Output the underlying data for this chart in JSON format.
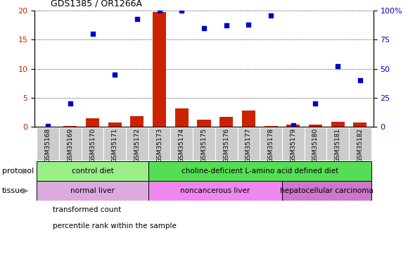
{
  "title": "GDS1385 / OR1266A",
  "samples": [
    "GSM35168",
    "GSM35169",
    "GSM35170",
    "GSM35171",
    "GSM35172",
    "GSM35173",
    "GSM35174",
    "GSM35175",
    "GSM35176",
    "GSM35177",
    "GSM35178",
    "GSM35179",
    "GSM35180",
    "GSM35181",
    "GSM35182"
  ],
  "transformed_count": [
    0.05,
    0.1,
    1.4,
    0.7,
    1.8,
    19.8,
    3.2,
    1.2,
    1.7,
    2.8,
    0.08,
    0.4,
    0.4,
    0.8,
    0.7
  ],
  "percentile_rank": [
    0.5,
    20,
    80,
    45,
    93,
    100,
    100,
    85,
    87,
    88,
    96,
    1,
    20,
    52,
    40
  ],
  "bar_color": "#cc2200",
  "scatter_color": "#0000cc",
  "ylim_left": [
    0,
    20
  ],
  "ylim_right": [
    0,
    100
  ],
  "yticks_left": [
    0,
    5,
    10,
    15,
    20
  ],
  "yticks_right": [
    0,
    25,
    50,
    75,
    100
  ],
  "ytick_labels_right": [
    "0",
    "25",
    "50",
    "75",
    "100%"
  ],
  "sample_box_color": "#cccccc",
  "protocol_groups": [
    {
      "label": "control diet",
      "start": 0,
      "end": 4,
      "color": "#99ee88"
    },
    {
      "label": "choline-deficient L-amino acid defined diet",
      "start": 5,
      "end": 14,
      "color": "#55dd55"
    }
  ],
  "tissue_groups": [
    {
      "label": "normal liver",
      "start": 0,
      "end": 4,
      "color": "#ddaadd"
    },
    {
      "label": "noncancerous liver",
      "start": 5,
      "end": 10,
      "color": "#ee88ee"
    },
    {
      "label": "hepatocellular carcinoma",
      "start": 11,
      "end": 14,
      "color": "#cc77cc"
    }
  ],
  "legend_items": [
    {
      "color": "#cc2200",
      "label": "transformed count"
    },
    {
      "color": "#0000cc",
      "label": "percentile rank within the sample"
    }
  ],
  "left_axis_color": "#cc2200",
  "right_axis_color": "#0000cc",
  "background_color": "#ffffff",
  "protocol_row_label": "protocol",
  "tissue_row_label": "tissue",
  "arrow_color": "#888888"
}
